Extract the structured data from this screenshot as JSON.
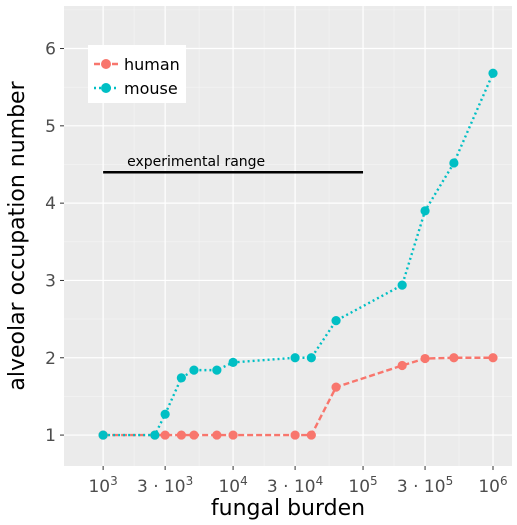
{
  "chart_data": {
    "type": "line",
    "title": "",
    "xlabel": "fungal burden",
    "ylabel": "alveolar occupation number",
    "x_scale": "log",
    "xlim": [
      500,
      1400000
    ],
    "ylim": [
      0.6,
      6.55
    ],
    "x_ticks": [
      {
        "value": 1000,
        "mantissa": "",
        "exponent": "3"
      },
      {
        "value": 3000,
        "mantissa": "3 · ",
        "exponent": "3"
      },
      {
        "value": 10000,
        "mantissa": "",
        "exponent": "4"
      },
      {
        "value": 30000,
        "mantissa": "3 · ",
        "exponent": "4"
      },
      {
        "value": 100000,
        "mantissa": "",
        "exponent": "5"
      },
      {
        "value": 300000,
        "mantissa": "3 · ",
        "exponent": "5"
      },
      {
        "value": 1000000,
        "mantissa": "",
        "exponent": "6"
      }
    ],
    "y_ticks": [
      1,
      2,
      3,
      4,
      5,
      6
    ],
    "grid": true,
    "legend_position": "top-left",
    "series": [
      {
        "name": "human",
        "color": "#f8766d",
        "line_style": "dashed",
        "x": [
          1000,
          2500,
          3000,
          4000,
          5000,
          7500,
          10000,
          30000,
          40000,
          62000,
          200000,
          300000,
          500000,
          1000000
        ],
        "y": [
          1.0,
          1.0,
          1.0,
          1.0,
          1.0,
          1.0,
          1.0,
          1.0,
          1.0,
          1.62,
          1.9,
          1.99,
          2.0,
          2.0
        ]
      },
      {
        "name": "mouse",
        "color": "#00bfc4",
        "line_style": "dotted",
        "x": [
          1000,
          2500,
          3000,
          4000,
          5000,
          7500,
          10000,
          30000,
          40000,
          62000,
          200000,
          300000,
          500000,
          1000000
        ],
        "y": [
          1.0,
          1.0,
          1.27,
          1.74,
          1.84,
          1.84,
          1.94,
          2.0,
          2.0,
          2.48,
          2.94,
          3.9,
          4.52,
          5.68
        ]
      }
    ],
    "annotations": [
      {
        "text": "experimental range",
        "x_start": 1000,
        "x_end": 100000,
        "y": 4.4
      }
    ]
  }
}
